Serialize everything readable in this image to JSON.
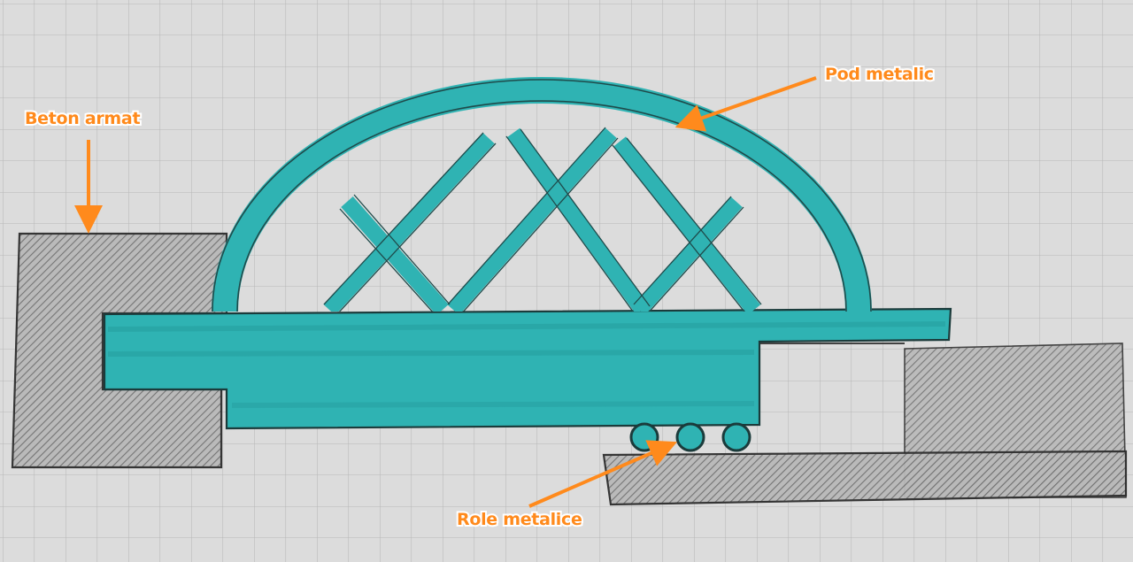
{
  "labels": {
    "beton_armat": "Beton armat",
    "pod_metalic": "Pod metalic",
    "role_metalice": "Role metalice"
  },
  "colors": {
    "paper": "#dcdcdc",
    "grid": "#b0b0b0",
    "bridge": "#2fb3b3",
    "concrete": "#8a8a8a",
    "arrow": "#ff8a1c"
  }
}
